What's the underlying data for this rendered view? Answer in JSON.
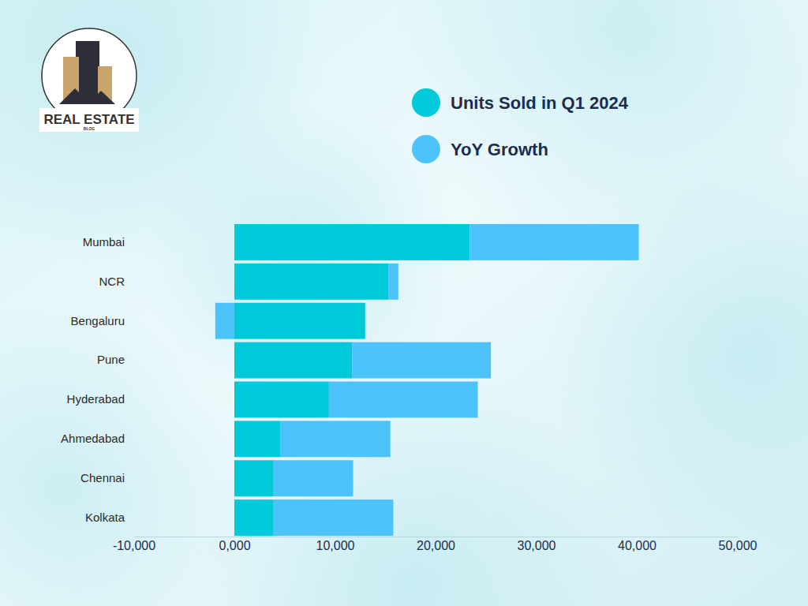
{
  "logo": {
    "title": "REAL ESTATE",
    "subtitle": "BLOG"
  },
  "chart_data": {
    "type": "bar",
    "orientation": "horizontal",
    "stacked": true,
    "grid": false,
    "legend": "top-right",
    "categories": [
      "Mumbai",
      "NCR",
      "Bengaluru",
      "Pune",
      "Hyderabad",
      "Ahmedabad",
      "Chennai",
      "Kolkata"
    ],
    "series": [
      {
        "name": "Units Sold in Q1 2024",
        "color": "#00c9d9",
        "values": [
          23400,
          15300,
          13000,
          11700,
          9400,
          4600,
          3900,
          3900
        ]
      },
      {
        "name": "YoY Growth",
        "color": "#4cc4fb",
        "values": [
          16800,
          1000,
          -1900,
          13800,
          14800,
          10900,
          7900,
          11900
        ]
      }
    ],
    "xlim": [
      -10000,
      50000
    ],
    "xticks": [
      {
        "value": -10000,
        "label": "-10,000"
      },
      {
        "value": 0,
        "label": "0,000"
      },
      {
        "value": 10000,
        "label": "10,000"
      },
      {
        "value": 20000,
        "label": "20,000"
      },
      {
        "value": 30000,
        "label": "30,000"
      },
      {
        "value": 40000,
        "label": "40,000"
      },
      {
        "value": 50000,
        "label": "50,000"
      }
    ]
  }
}
